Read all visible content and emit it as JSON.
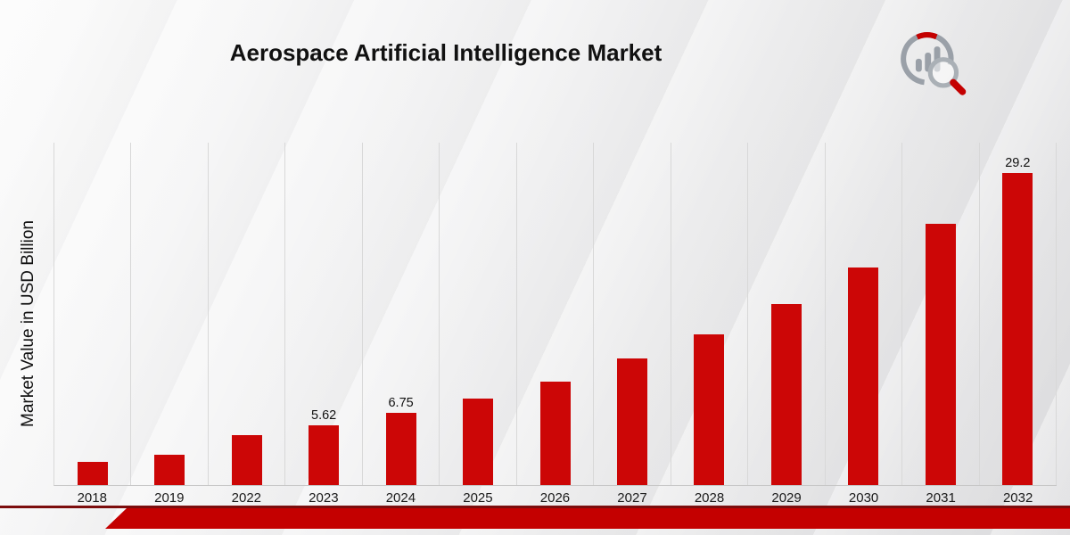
{
  "colors": {
    "bar": "#cc0606",
    "grid": "#d8d8d8",
    "axis": "#c7c7c7",
    "ribbon": "#c40000",
    "ribbon_dark": "#7c0d0d"
  },
  "footer": {
    "ribbon_shape": "red angled band"
  },
  "logo": {
    "icon": "bar-chart-magnifier-logo"
  },
  "chart_data": {
    "type": "bar",
    "title": "Aerospace Artificial Intelligence Market",
    "xlabel": "",
    "ylabel": "Market Value in USD Billion",
    "categories": [
      "2018",
      "2019",
      "2022",
      "2023",
      "2024",
      "2025",
      "2026",
      "2027",
      "2028",
      "2029",
      "2030",
      "2031",
      "2032"
    ],
    "values": [
      2.2,
      2.8,
      4.7,
      5.62,
      6.75,
      8.05,
      9.7,
      11.8,
      14.1,
      16.9,
      20.3,
      24.4,
      29.2
    ],
    "value_labels": {
      "2023": "5.62",
      "2024": "6.75",
      "2032": "29.2"
    },
    "ylim": [
      0,
      32
    ],
    "grid": "vertical-only",
    "legend": "none",
    "bar_color": "#cc0606"
  }
}
